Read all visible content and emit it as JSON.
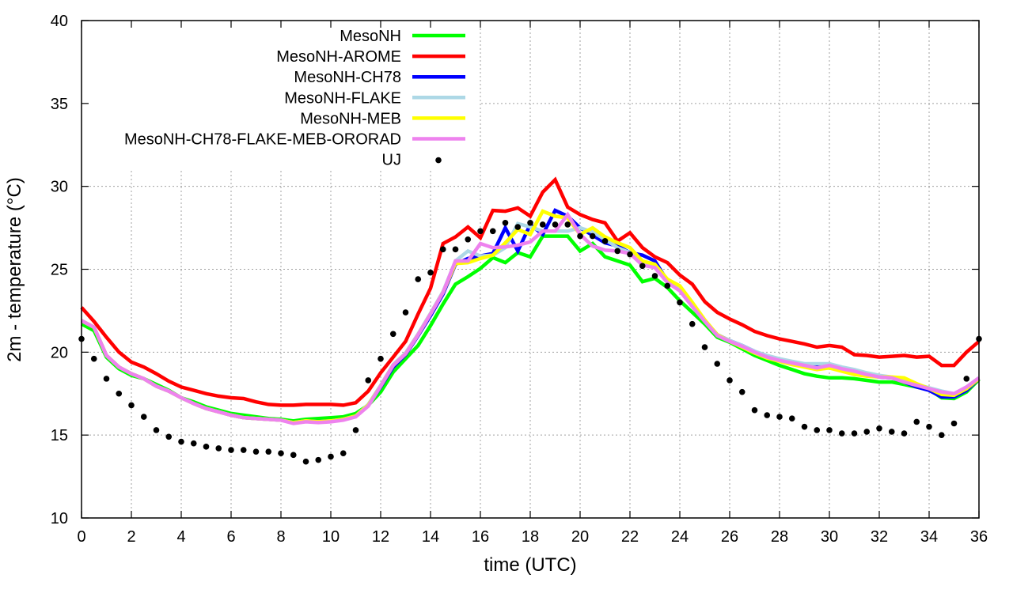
{
  "chart_data": {
    "type": "line",
    "title": "",
    "xlabel": "time (UTC)",
    "ylabel": "2m - temperature (°C)",
    "xlim": [
      0,
      36
    ],
    "ylim": [
      10,
      40
    ],
    "xticks": [
      0,
      2,
      4,
      6,
      8,
      10,
      12,
      14,
      16,
      18,
      20,
      22,
      24,
      26,
      28,
      30,
      32,
      34,
      36
    ],
    "yticks": [
      10,
      15,
      20,
      25,
      30,
      35,
      40
    ],
    "grid": true,
    "legend_position": "top-left",
    "x": [
      0,
      0.5,
      1,
      1.5,
      2,
      2.5,
      3,
      3.5,
      4,
      4.5,
      5,
      5.5,
      6,
      6.5,
      7,
      7.5,
      8,
      8.5,
      9,
      9.5,
      10,
      10.5,
      11,
      11.5,
      12,
      12.5,
      13,
      13.5,
      14,
      14.5,
      15,
      15.5,
      16,
      16.5,
      17,
      17.5,
      18,
      18.5,
      19,
      19.5,
      20,
      20.5,
      21,
      21.5,
      22,
      22.5,
      23,
      23.5,
      24,
      24.5,
      25,
      25.5,
      26,
      26.5,
      27,
      27.5,
      28,
      28.5,
      29,
      29.5,
      30,
      30.5,
      31,
      31.5,
      32,
      32.5,
      33,
      33.5,
      34,
      34.5,
      35,
      35.5,
      36
    ],
    "series": [
      {
        "name": "MesoNH",
        "color": "#00ff00",
        "style": "line",
        "values": [
          21.7,
          21.3,
          19.7,
          19.0,
          18.6,
          18.4,
          18.05,
          17.7,
          17.25,
          17.0,
          16.7,
          16.5,
          16.3,
          16.2,
          16.1,
          16.0,
          15.95,
          15.85,
          15.95,
          16.0,
          16.05,
          16.1,
          16.3,
          16.8,
          17.6,
          18.8,
          19.6,
          20.4,
          21.6,
          22.9,
          24.1,
          24.55,
          25.05,
          25.7,
          25.4,
          26.0,
          25.75,
          27.0,
          27.0,
          27.0,
          26.1,
          26.55,
          25.75,
          25.5,
          25.25,
          24.25,
          24.45,
          23.9,
          23.1,
          22.4,
          21.7,
          20.9,
          20.6,
          20.2,
          19.8,
          19.5,
          19.2,
          18.95,
          18.7,
          18.55,
          18.45,
          18.45,
          18.4,
          18.3,
          18.2,
          18.2,
          18.05,
          17.9,
          17.75,
          17.25,
          17.2,
          17.6,
          18.35
        ]
      },
      {
        "name": "MesoNH-AROME",
        "color": "#ff0000",
        "style": "line",
        "values": [
          22.7,
          21.85,
          20.9,
          20.0,
          19.4,
          19.1,
          18.7,
          18.25,
          17.9,
          17.7,
          17.5,
          17.35,
          17.25,
          17.2,
          17.0,
          16.85,
          16.8,
          16.8,
          16.85,
          16.85,
          16.85,
          16.8,
          16.95,
          17.65,
          18.75,
          19.7,
          20.65,
          22.3,
          23.85,
          26.55,
          26.95,
          27.55,
          26.9,
          28.55,
          28.5,
          28.7,
          28.2,
          29.65,
          30.4,
          28.75,
          28.3,
          28.0,
          27.8,
          26.7,
          27.2,
          26.3,
          25.75,
          25.4,
          24.65,
          24.1,
          23.05,
          22.4,
          22.0,
          21.65,
          21.25,
          21.0,
          20.8,
          20.65,
          20.5,
          20.3,
          20.4,
          20.3,
          19.85,
          19.8,
          19.7,
          19.75,
          19.8,
          19.7,
          19.75,
          19.2,
          19.2,
          20.0,
          20.65
        ]
      },
      {
        "name": "MesoNH-CH78",
        "color": "#0000ff",
        "style": "line",
        "values": [
          21.9,
          21.5,
          19.8,
          19.1,
          18.7,
          18.4,
          17.95,
          17.65,
          17.25,
          16.9,
          16.6,
          16.4,
          16.2,
          16.05,
          16.0,
          15.95,
          15.9,
          15.75,
          15.85,
          15.8,
          15.85,
          15.95,
          16.15,
          16.8,
          17.9,
          19.1,
          19.85,
          21.0,
          22.2,
          23.5,
          25.3,
          25.65,
          25.8,
          25.95,
          27.5,
          26.1,
          27.7,
          27.1,
          28.55,
          28.2,
          27.5,
          27.05,
          26.6,
          26.4,
          26.0,
          25.85,
          25.5,
          24.3,
          23.8,
          22.85,
          21.9,
          21.05,
          20.7,
          20.4,
          20.05,
          19.75,
          19.55,
          19.4,
          19.25,
          19.1,
          19.2,
          19.0,
          18.85,
          18.65,
          18.5,
          18.45,
          18.2,
          17.9,
          17.7,
          17.3,
          17.3,
          17.7,
          18.4
        ]
      },
      {
        "name": "MesoNH-FLAKE",
        "color": "#add8e6",
        "style": "line",
        "values": [
          21.9,
          21.5,
          19.8,
          19.1,
          18.7,
          18.4,
          17.95,
          17.65,
          17.25,
          16.9,
          16.6,
          16.4,
          16.2,
          16.05,
          16.0,
          15.95,
          15.9,
          15.75,
          15.85,
          15.8,
          15.85,
          15.95,
          16.15,
          16.85,
          18.0,
          19.25,
          19.95,
          21.1,
          22.35,
          23.65,
          25.5,
          26.1,
          25.8,
          25.85,
          26.3,
          27.75,
          27.55,
          27.3,
          27.3,
          27.3,
          27.5,
          27.25,
          26.8,
          26.3,
          26.0,
          25.4,
          25.2,
          24.3,
          23.8,
          22.85,
          21.9,
          21.05,
          20.7,
          20.4,
          20.05,
          19.8,
          19.6,
          19.45,
          19.3,
          19.3,
          19.3,
          19.1,
          18.95,
          18.75,
          18.6,
          18.5,
          18.3,
          18.05,
          17.85,
          17.65,
          17.5,
          17.9,
          18.45
        ]
      },
      {
        "name": "MesoNH-MEB",
        "color": "#ffff00",
        "style": "line",
        "values": [
          21.9,
          21.5,
          19.8,
          19.1,
          18.7,
          18.4,
          17.95,
          17.65,
          17.25,
          16.9,
          16.6,
          16.4,
          16.2,
          16.05,
          16.0,
          15.95,
          15.9,
          15.75,
          15.85,
          15.8,
          15.85,
          15.95,
          16.15,
          16.8,
          17.95,
          19.2,
          19.9,
          21.05,
          22.3,
          23.6,
          25.35,
          25.4,
          25.65,
          25.85,
          26.6,
          27.4,
          27.1,
          28.5,
          28.2,
          28.1,
          27.1,
          27.5,
          26.95,
          26.6,
          26.3,
          25.5,
          25.3,
          24.4,
          24.0,
          23.0,
          21.95,
          21.05,
          20.65,
          20.3,
          19.95,
          19.65,
          19.45,
          19.25,
          19.1,
          18.95,
          19.05,
          18.85,
          18.65,
          18.55,
          18.5,
          18.5,
          18.45,
          18.1,
          17.8,
          17.45,
          17.4,
          17.8,
          18.4
        ]
      },
      {
        "name": "MesoNH-CH78-FLAKE-MEB-ORORAD",
        "color": "#ee82ee",
        "style": "line",
        "values": [
          21.9,
          21.5,
          19.8,
          19.1,
          18.7,
          18.4,
          17.95,
          17.65,
          17.25,
          16.9,
          16.6,
          16.4,
          16.2,
          16.05,
          16.0,
          15.95,
          15.9,
          15.7,
          15.8,
          15.75,
          15.8,
          15.9,
          16.1,
          16.75,
          17.95,
          19.2,
          19.9,
          21.05,
          22.3,
          23.6,
          25.5,
          25.5,
          26.55,
          26.3,
          26.35,
          26.45,
          26.65,
          27.3,
          27.3,
          28.3,
          27.1,
          26.4,
          26.15,
          26.1,
          25.95,
          25.25,
          25.1,
          24.2,
          23.7,
          22.75,
          21.85,
          21.0,
          20.65,
          20.35,
          20.0,
          19.7,
          19.5,
          19.35,
          19.2,
          19.05,
          19.2,
          19.0,
          18.85,
          18.65,
          18.5,
          18.45,
          18.2,
          18.0,
          17.8,
          17.6,
          17.5,
          17.9,
          18.45
        ]
      },
      {
        "name": "UJ",
        "color": "#000000",
        "style": "points",
        "values": [
          20.8,
          19.6,
          18.4,
          17.5,
          16.8,
          16.1,
          15.3,
          14.9,
          14.6,
          14.5,
          14.3,
          14.2,
          14.1,
          14.1,
          14.0,
          14.0,
          13.9,
          13.8,
          13.4,
          13.5,
          13.7,
          13.9,
          15.3,
          18.3,
          19.6,
          21.1,
          22.4,
          24.4,
          24.8,
          26.2,
          26.2,
          26.8,
          27.3,
          27.3,
          27.8,
          27.55,
          27.8,
          27.7,
          27.7,
          27.7,
          27.0,
          27.0,
          26.7,
          26.1,
          25.9,
          25.2,
          24.6,
          24.0,
          23.0,
          21.7,
          20.3,
          19.3,
          18.3,
          17.6,
          16.5,
          16.2,
          16.1,
          16.0,
          15.5,
          15.3,
          15.3,
          15.1,
          15.1,
          15.2,
          15.4,
          15.2,
          15.1,
          15.8,
          15.5,
          15.0,
          15.7,
          18.4,
          20.8
        ]
      }
    ]
  }
}
